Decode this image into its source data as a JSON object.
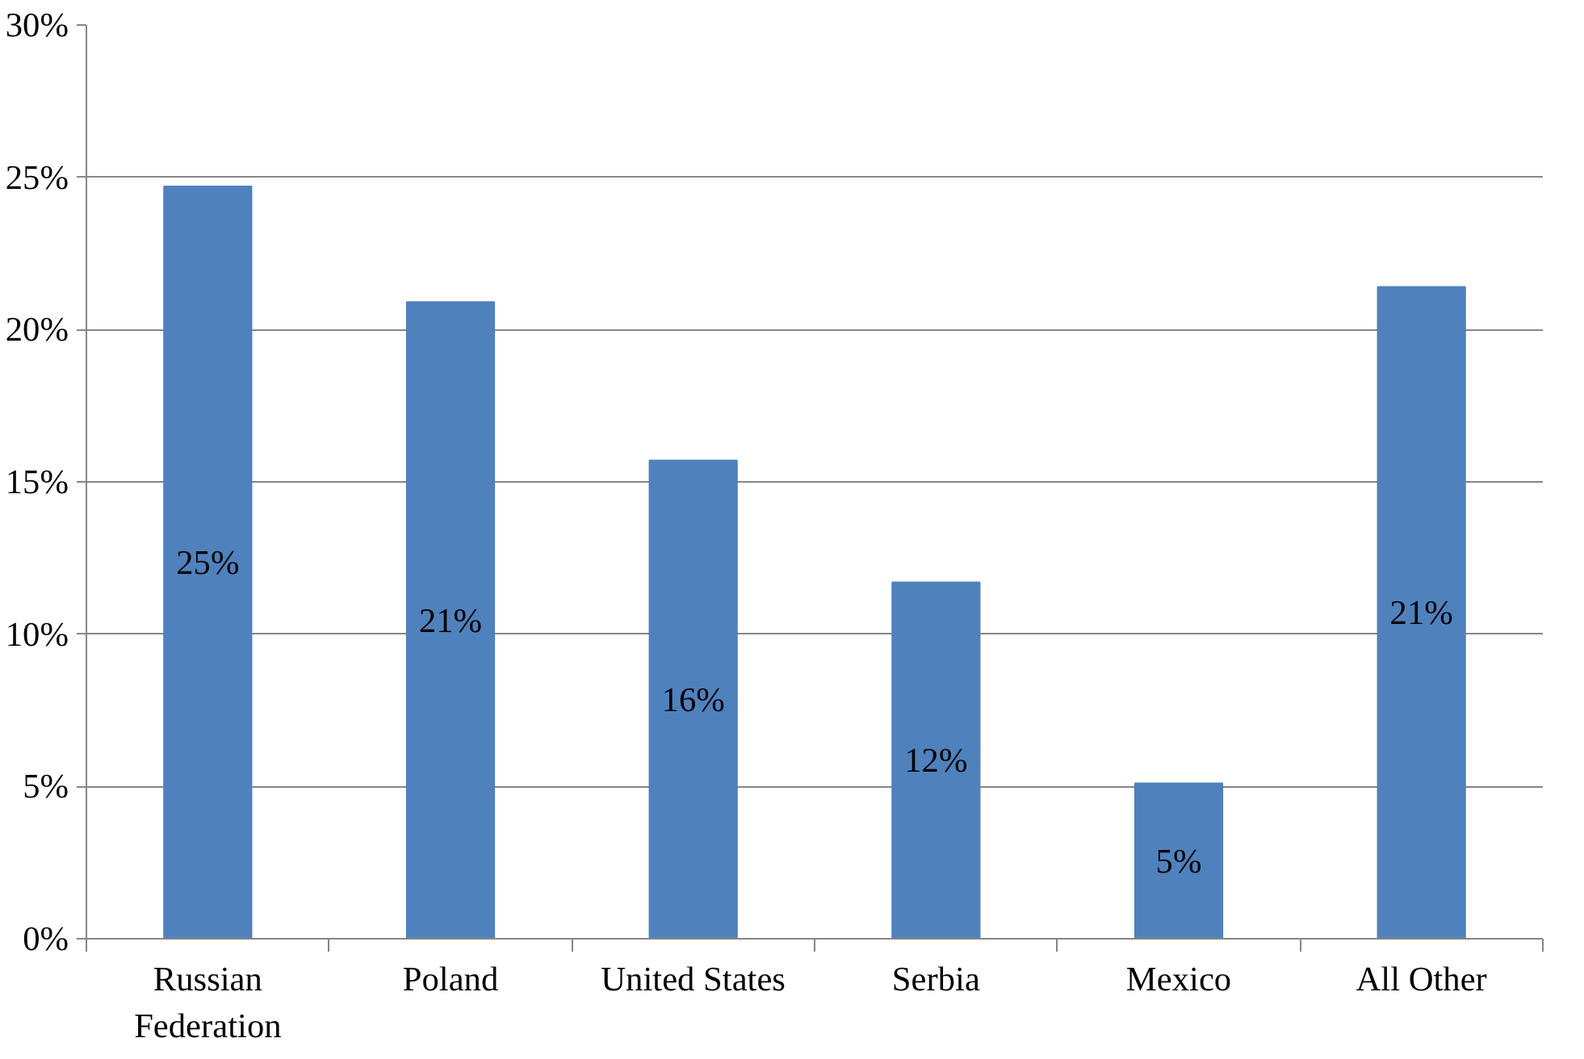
{
  "chart_data": {
    "type": "bar",
    "categories": [
      "Russian\nFederation",
      "Poland",
      "United States",
      "Serbia",
      "Mexico",
      "All Other"
    ],
    "values": [
      24.7,
      20.9,
      15.7,
      11.7,
      5.1,
      21.4
    ],
    "value_labels": [
      "25%",
      "21%",
      "16%",
      "12%",
      "5%",
      "21%"
    ],
    "color": "#4f81bd",
    "ylim": [
      0,
      30
    ],
    "yticks": [
      {
        "value": 0,
        "label": "0%"
      },
      {
        "value": 5,
        "label": "5%"
      },
      {
        "value": 10,
        "label": "10%"
      },
      {
        "value": 15,
        "label": "15%"
      },
      {
        "value": 20,
        "label": "20%"
      },
      {
        "value": 25,
        "label": "25%"
      },
      {
        "value": 30,
        "label": "30%"
      }
    ],
    "grid": "y"
  }
}
